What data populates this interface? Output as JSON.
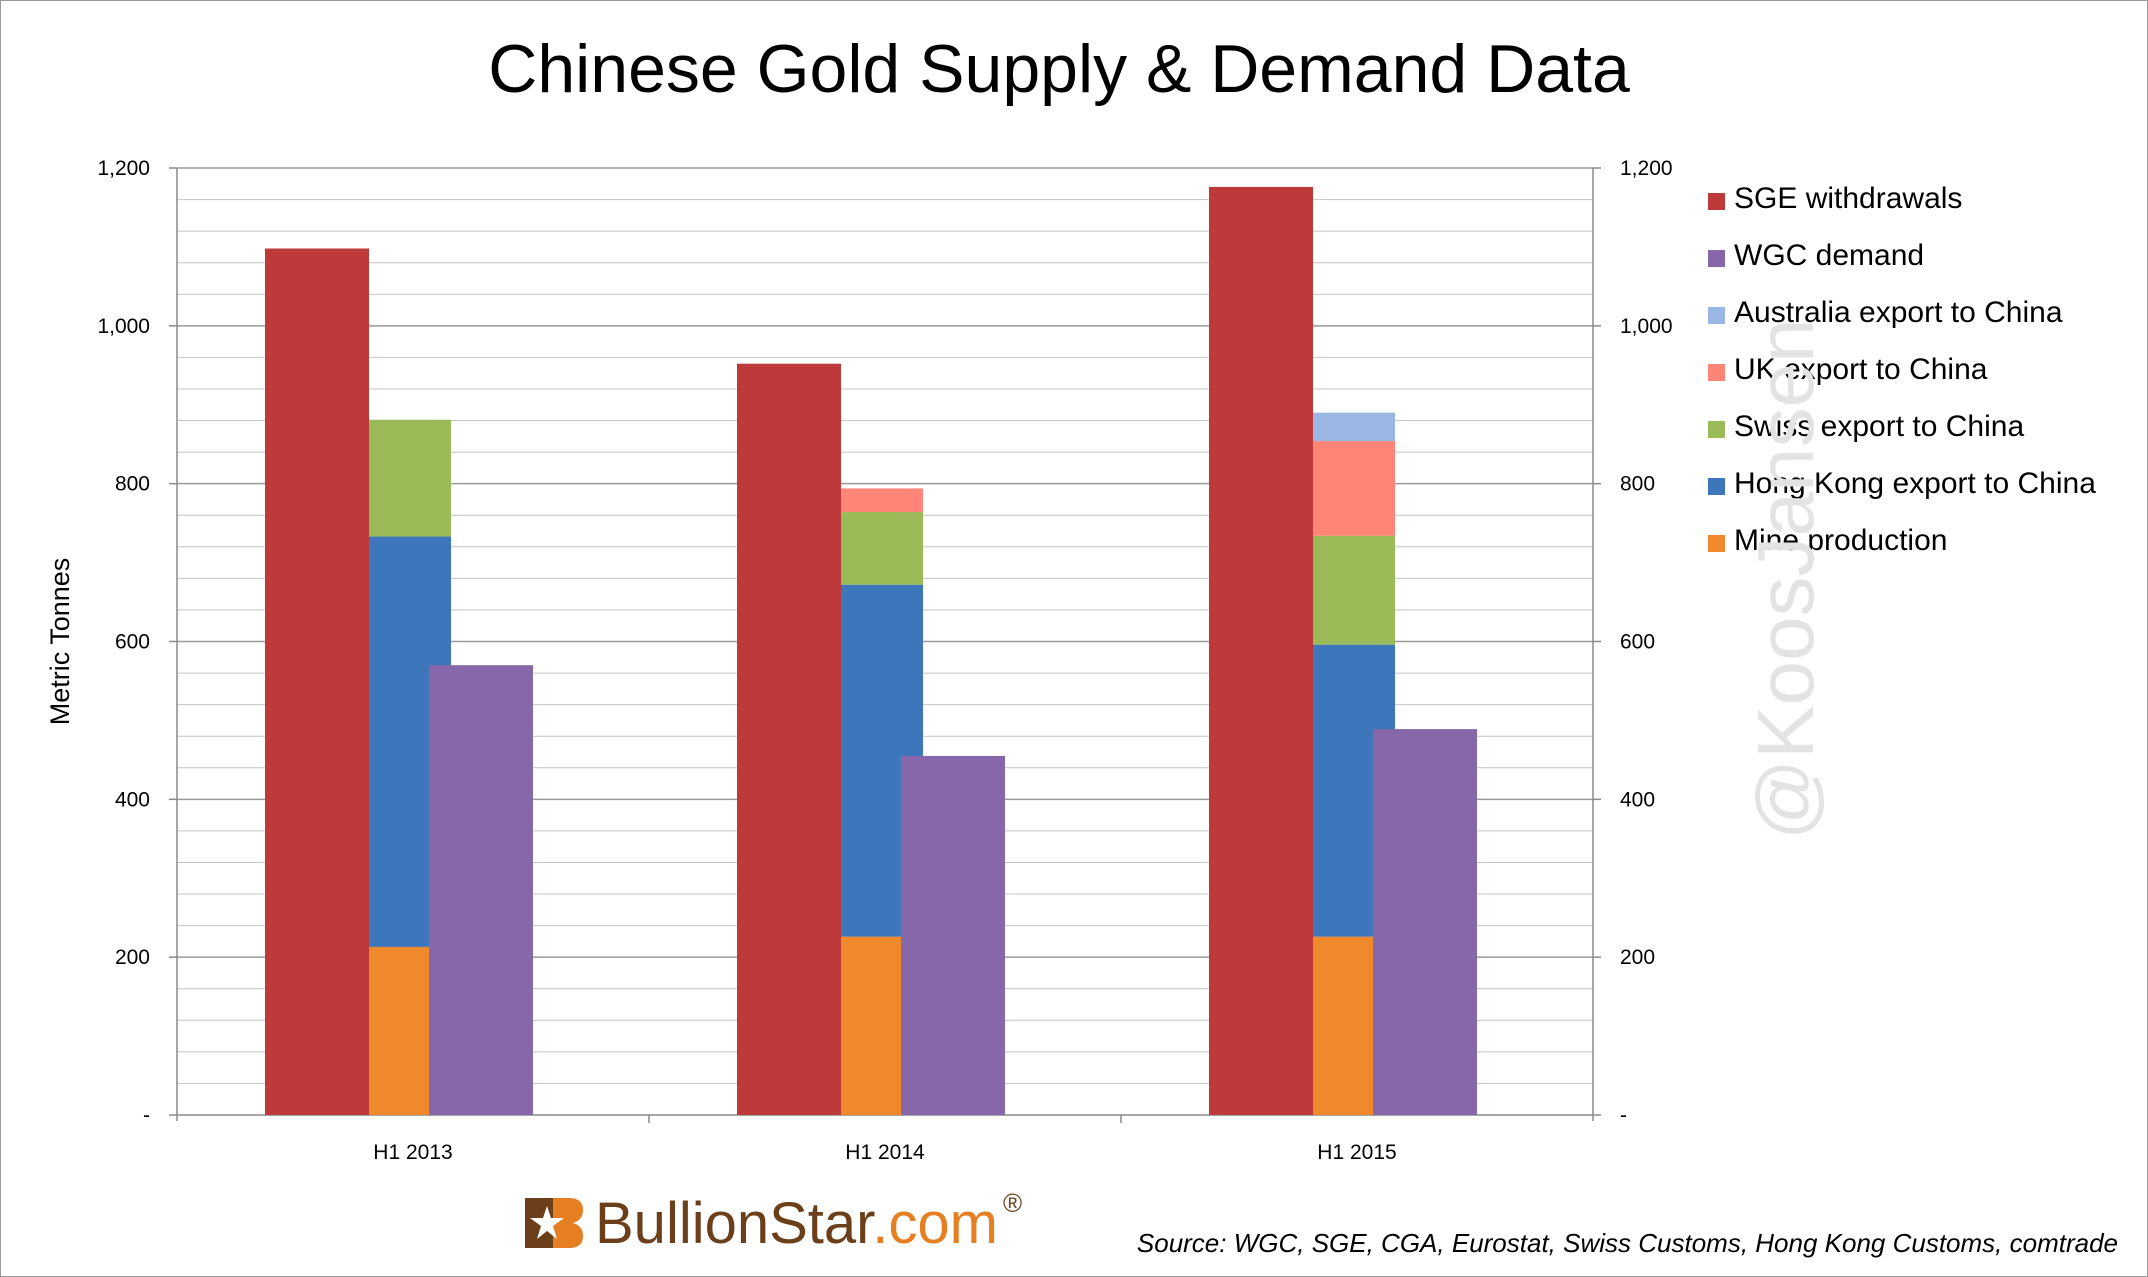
{
  "title": "Chinese Gold Supply & Demand Data",
  "watermark": "@KoosJansen",
  "logo": {
    "brand": "BullionStar",
    "domain": ".com",
    "reg": "®",
    "icon": "star-logo-icon"
  },
  "source": "Source: WGC, SGE, CGA, Eurostat, Swiss Customs, Hong Kong Customs, comtrade",
  "chart_data": {
    "type": "bar",
    "ylabel": "Metric Tonnes",
    "xlabel": "",
    "ylim": [
      0,
      1200
    ],
    "yticks": [
      0,
      200,
      400,
      600,
      800,
      1000,
      1200
    ],
    "ytick_labels": [
      "-",
      "200",
      "400",
      "600",
      "800",
      "1,000",
      "1,200"
    ],
    "minor_gridlines_every": 40,
    "legend_position": "right",
    "categories": [
      "H1 2013",
      "H1 2014",
      "H1 2015"
    ],
    "series": [
      {
        "name": "SGE withdrawals",
        "color": "#be3a3a",
        "stack": "sge",
        "values": [
          1098,
          952,
          1176
        ]
      },
      {
        "name": "WGC demand",
        "color": "#8567aa",
        "stack": "wgc",
        "values": [
          570,
          455,
          489
        ]
      },
      {
        "name": "Australia export to China",
        "color": "#9ab7e4",
        "stack": "supply",
        "values": [
          0,
          0,
          36
        ]
      },
      {
        "name": "UK export to China",
        "color": "#ff8578",
        "stack": "supply",
        "values": [
          0,
          30,
          120
        ]
      },
      {
        "name": "Swiss export to China",
        "color": "#9bbb59",
        "stack": "supply",
        "values": [
          148,
          92,
          138
        ]
      },
      {
        "name": "Hong Kong export to China",
        "color": "#3d76bb",
        "stack": "supply",
        "values": [
          520,
          446,
          370
        ]
      },
      {
        "name": "Mine production",
        "color": "#f0892b",
        "stack": "supply",
        "values": [
          213,
          226,
          226
        ]
      }
    ]
  }
}
